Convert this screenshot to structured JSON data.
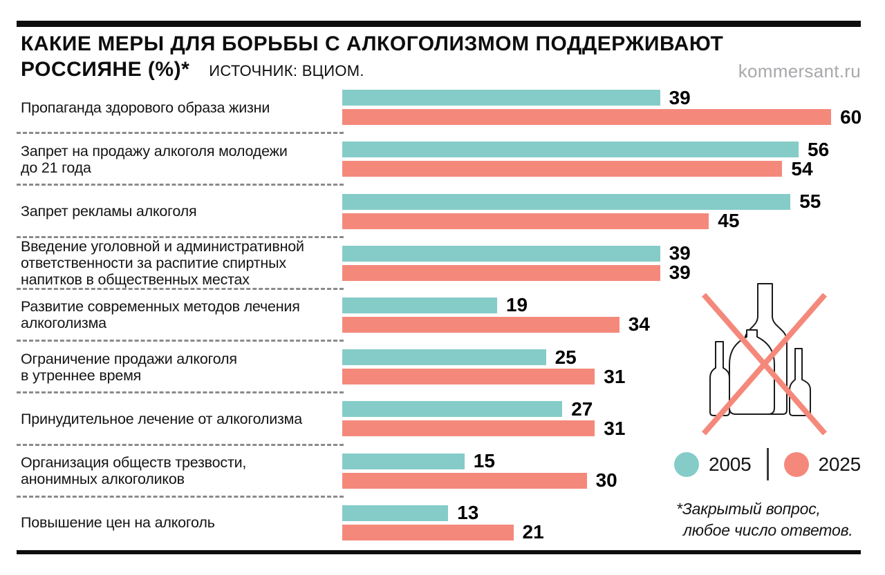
{
  "header": {
    "title_line1": "КАКИЕ МЕРЫ ДЛЯ БОРЬБЫ С АЛКОГОЛИЗМОМ ПОДДЕРЖИВАЮТ",
    "title_line2": "РОССИЯНЕ (%)*",
    "source": "ИСТОЧНИК: ВЦИОМ.",
    "watermark": "kommersant.ru"
  },
  "colors": {
    "teal": "#85CCC8",
    "salmon": "#F4897B",
    "ink": "#0d0d0d",
    "watermark_gray": "#A6A8AB"
  },
  "footnote": {
    "line1": "*Закрытый вопрос,",
    "line2": "любое число ответов."
  },
  "illustration": "crossed-out-bottles",
  "chart_data": {
    "type": "bar",
    "orientation": "horizontal",
    "title": "КАКИЕ МЕРЫ ДЛЯ БОРЬБЫ С АЛКОГОЛИЗМОМ ПОДДЕРЖИВАЮТ РОССИЯНЕ (%)*",
    "source": "ИСТОЧНИК: ВЦИОМ.",
    "value_labels": true,
    "grid": false,
    "legend_position": "bottom-right",
    "xlim": [
      0,
      63
    ],
    "categories": [
      "Пропаганда здорового образа жизни",
      "Запрет на продажу алкоголя молодежи\nдо 21 года",
      "Запрет рекламы алкоголя",
      "Введение уголовной и административной\nответственности за распитие спиртных\nнапитков в общественных местах",
      "Развитие современных методов лечения\nалкоголизма",
      "Ограничение продажи алкоголя\nв утреннее время",
      "Принудительное лечение от алкоголизма",
      "Организация обществ трезвости,\nанонимных алкоголиков",
      "Повышение цен на алкоголь"
    ],
    "series": [
      {
        "name": "2005",
        "color": "#85CCC8",
        "values": [
          39,
          56,
          55,
          39,
          19,
          25,
          27,
          15,
          13
        ]
      },
      {
        "name": "2025",
        "color": "#F4897B",
        "values": [
          60,
          54,
          45,
          39,
          34,
          31,
          31,
          30,
          21
        ]
      }
    ]
  }
}
